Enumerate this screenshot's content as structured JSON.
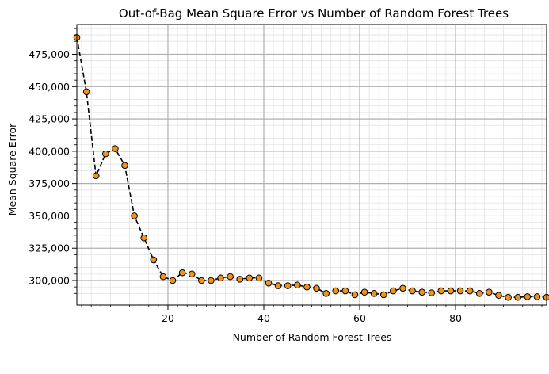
{
  "chart_data": {
    "type": "line",
    "title": "Out-of-Bag Mean Square Error vs Number of Random Forest Trees",
    "xlabel": "Number of Random Forest Trees",
    "ylabel": "Mean Square Error",
    "xlim": [
      1,
      99
    ],
    "ylim": [
      281000,
      498000
    ],
    "x_ticks": [
      20,
      40,
      60,
      80
    ],
    "x_tick_labels": [
      "20",
      "40",
      "60",
      "80"
    ],
    "y_ticks": [
      300000,
      325000,
      350000,
      375000,
      400000,
      425000,
      450000,
      475000
    ],
    "y_tick_labels": [
      "300,000",
      "325,000",
      "350,000",
      "375,000",
      "400,000",
      "425,000",
      "450,000",
      "475,000"
    ],
    "grid": true,
    "series": [
      {
        "line_style": "dashed",
        "line_color": "#000000",
        "marker_color": "#f0921e",
        "marker_edge": "#000000",
        "x": [
          1,
          3,
          5,
          7,
          9,
          11,
          13,
          15,
          17,
          19,
          21,
          23,
          25,
          27,
          29,
          31,
          33,
          35,
          37,
          39,
          41,
          43,
          45,
          47,
          49,
          51,
          53,
          55,
          57,
          59,
          61,
          63,
          65,
          67,
          69,
          71,
          73,
          75,
          77,
          79,
          81,
          83,
          85,
          87,
          89,
          91,
          93,
          95,
          97,
          99
        ],
        "y": [
          488000,
          446000,
          381000,
          398000,
          402000,
          389000,
          350000,
          333000,
          316000,
          303000,
          300000,
          306000,
          305000,
          300000,
          300000,
          302000,
          303000,
          301000,
          302000,
          302000,
          298000,
          296000,
          296000,
          296500,
          295000,
          294000,
          290000,
          292000,
          292000,
          289000,
          291000,
          290000,
          289000,
          292000,
          294000,
          292000,
          291000,
          290500,
          292000,
          292000,
          292000,
          292000,
          290000,
          291000,
          288500,
          287000,
          287000,
          287500,
          287500,
          287000
        ]
      }
    ]
  }
}
